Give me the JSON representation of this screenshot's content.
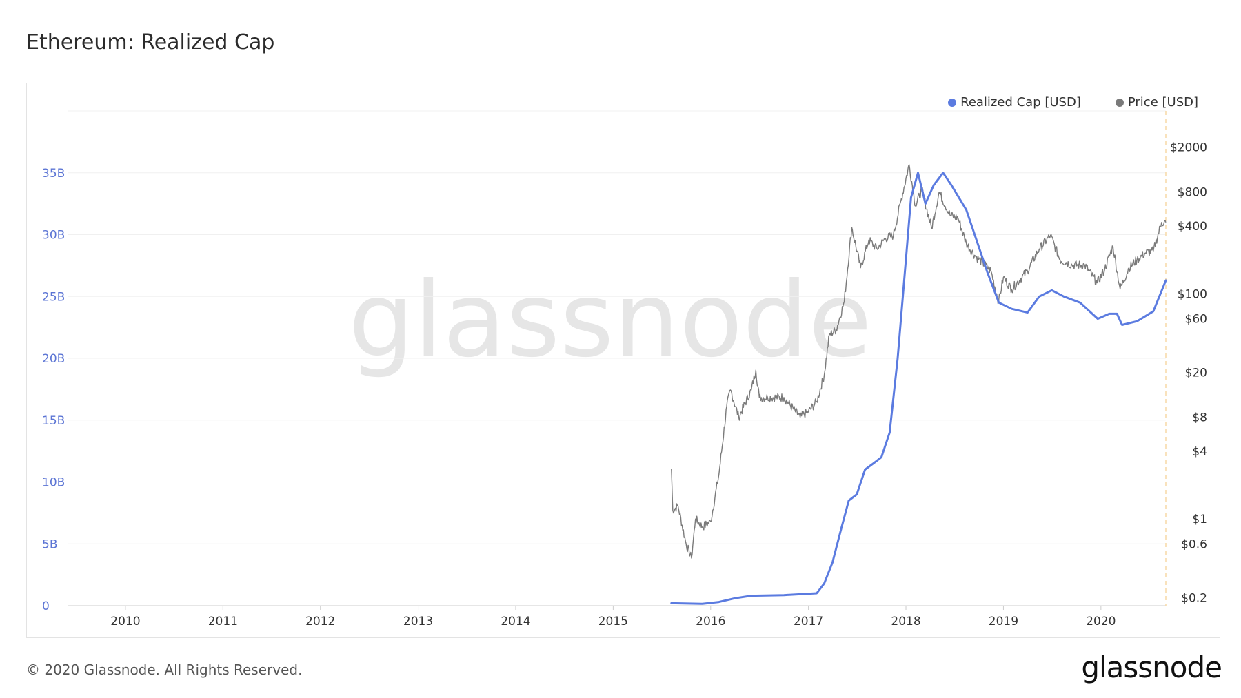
{
  "header": {
    "title": "Ethereum: Realized Cap"
  },
  "footer": {
    "copyright": "© 2020 Glassnode. All Rights Reserved.",
    "logo_text": "glassnode"
  },
  "watermark": "glassnode",
  "colors": {
    "realized_cap": "#5b7be0",
    "price": "#7a7a7a",
    "left_axis": "#5b74d4",
    "grid": "#f0f0f0",
    "marker_line": "#f7d9a6"
  },
  "chart_data": {
    "type": "line",
    "title": "Ethereum: Realized Cap",
    "legend_position": "top-right",
    "grid": true,
    "x_axis": {
      "type": "date",
      "range": [
        "2009-06-01",
        "2020-08-31"
      ],
      "tick_labels": [
        "2010",
        "2011",
        "2012",
        "2013",
        "2014",
        "2015",
        "2016",
        "2017",
        "2018",
        "2019",
        "2020"
      ]
    },
    "y_left": {
      "range": [
        0,
        40000000000
      ],
      "ticks": [
        0,
        5000000000,
        10000000000,
        15000000000,
        20000000000,
        25000000000,
        30000000000,
        35000000000
      ],
      "tick_labels": [
        "0",
        "5B",
        "10B",
        "15B",
        "20B",
        "25B",
        "30B",
        "35B"
      ]
    },
    "y_right": {
      "scale": "log",
      "range": [
        0.17,
        4200
      ],
      "ticks": [
        0.2,
        0.6,
        1,
        4,
        8,
        20,
        60,
        100,
        400,
        800,
        2000
      ],
      "tick_labels": [
        "$0.2",
        "$0.6",
        "$1",
        "$4",
        "$8",
        "$20",
        "$60",
        "$100",
        "$400",
        "$800",
        "$2000"
      ]
    },
    "series": [
      {
        "name": "Realized Cap [USD]",
        "axis": "left",
        "points": [
          [
            "2015-08-07",
            200000000
          ],
          [
            "2015-12-01",
            150000000
          ],
          [
            "2016-02-01",
            300000000
          ],
          [
            "2016-04-01",
            600000000
          ],
          [
            "2016-06-01",
            800000000
          ],
          [
            "2016-10-01",
            850000000
          ],
          [
            "2017-02-01",
            1000000000
          ],
          [
            "2017-03-01",
            1800000000
          ],
          [
            "2017-04-01",
            3500000000
          ],
          [
            "2017-05-01",
            6000000000
          ],
          [
            "2017-06-01",
            8500000000
          ],
          [
            "2017-07-01",
            9000000000
          ],
          [
            "2017-08-01",
            11000000000
          ],
          [
            "2017-09-01",
            11500000000
          ],
          [
            "2017-10-01",
            12000000000
          ],
          [
            "2017-11-01",
            14000000000
          ],
          [
            "2017-12-01",
            20000000000
          ],
          [
            "2018-01-01",
            28000000000
          ],
          [
            "2018-01-20",
            33000000000
          ],
          [
            "2018-02-15",
            35000000000
          ],
          [
            "2018-03-15",
            32500000000
          ],
          [
            "2018-04-15",
            34000000000
          ],
          [
            "2018-05-20",
            35000000000
          ],
          [
            "2018-06-20",
            34000000000
          ],
          [
            "2018-08-15",
            32000000000
          ],
          [
            "2018-10-01",
            29000000000
          ],
          [
            "2018-11-01",
            27000000000
          ],
          [
            "2018-12-15",
            24500000000
          ],
          [
            "2019-02-01",
            24000000000
          ],
          [
            "2019-04-01",
            23700000000
          ],
          [
            "2019-05-15",
            25000000000
          ],
          [
            "2019-07-01",
            25500000000
          ],
          [
            "2019-08-15",
            25000000000
          ],
          [
            "2019-10-15",
            24500000000
          ],
          [
            "2019-12-20",
            23200000000
          ],
          [
            "2020-02-01",
            23600000000
          ],
          [
            "2020-03-01",
            23600000000
          ],
          [
            "2020-03-20",
            22700000000
          ],
          [
            "2020-05-15",
            23000000000
          ],
          [
            "2020-07-15",
            23800000000
          ],
          [
            "2020-08-31",
            26300000000
          ]
        ]
      },
      {
        "name": "Price [USD]",
        "axis": "right",
        "points": [
          [
            "2015-08-07",
            2.8
          ],
          [
            "2015-08-12",
            1.2
          ],
          [
            "2015-09-01",
            1.3
          ],
          [
            "2015-10-01",
            0.6
          ],
          [
            "2015-10-21",
            0.45
          ],
          [
            "2015-11-05",
            1.0
          ],
          [
            "2015-12-01",
            0.85
          ],
          [
            "2016-01-01",
            0.95
          ],
          [
            "2016-02-01",
            2.5
          ],
          [
            "2016-03-01",
            10
          ],
          [
            "2016-03-15",
            14
          ],
          [
            "2016-04-15",
            8
          ],
          [
            "2016-06-01",
            14
          ],
          [
            "2016-06-18",
            21
          ],
          [
            "2016-07-01",
            12
          ],
          [
            "2016-08-01",
            12
          ],
          [
            "2016-10-01",
            12
          ],
          [
            "2016-12-01",
            8
          ],
          [
            "2017-01-01",
            9
          ],
          [
            "2017-02-01",
            11
          ],
          [
            "2017-03-01",
            19
          ],
          [
            "2017-03-20",
            43
          ],
          [
            "2017-04-15",
            48
          ],
          [
            "2017-05-15",
            85
          ],
          [
            "2017-06-12",
            390
          ],
          [
            "2017-07-15",
            170
          ],
          [
            "2017-08-15",
            300
          ],
          [
            "2017-09-15",
            250
          ],
          [
            "2017-10-15",
            310
          ],
          [
            "2017-11-15",
            330
          ],
          [
            "2017-12-15",
            700
          ],
          [
            "2018-01-13",
            1400
          ],
          [
            "2018-02-06",
            600
          ],
          [
            "2018-03-01",
            850
          ],
          [
            "2018-04-07",
            380
          ],
          [
            "2018-05-05",
            800
          ],
          [
            "2018-06-15",
            500
          ],
          [
            "2018-07-15",
            470
          ],
          [
            "2018-08-15",
            280
          ],
          [
            "2018-09-15",
            220
          ],
          [
            "2018-11-15",
            160
          ],
          [
            "2018-12-14",
            85
          ],
          [
            "2019-01-01",
            140
          ],
          [
            "2019-02-01",
            110
          ],
          [
            "2019-04-01",
            160
          ],
          [
            "2019-05-15",
            250
          ],
          [
            "2019-06-26",
            330
          ],
          [
            "2019-08-01",
            200
          ],
          [
            "2019-09-15",
            180
          ],
          [
            "2019-11-01",
            180
          ],
          [
            "2019-12-18",
            125
          ],
          [
            "2020-01-15",
            165
          ],
          [
            "2020-02-15",
            265
          ],
          [
            "2020-03-13",
            110
          ],
          [
            "2020-04-15",
            170
          ],
          [
            "2020-05-15",
            200
          ],
          [
            "2020-06-15",
            230
          ],
          [
            "2020-07-15",
            240
          ],
          [
            "2020-08-15",
            430
          ],
          [
            "2020-08-31",
            430
          ]
        ]
      }
    ]
  }
}
